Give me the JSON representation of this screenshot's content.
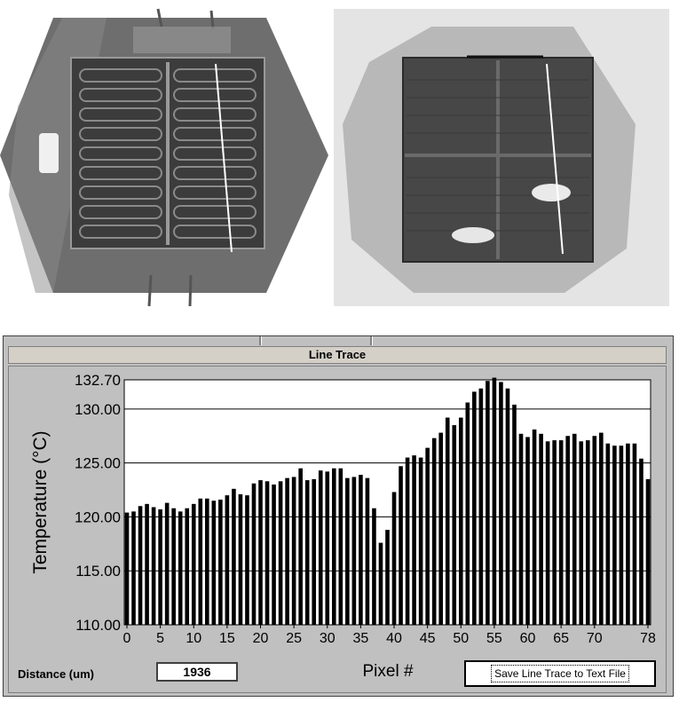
{
  "window": {
    "title": "Line Trace"
  },
  "controls": {
    "distance_label": "Distance (um)",
    "distance_value": "1936",
    "save_button_label": "Save Line Trace to Text File"
  },
  "chart_data": {
    "type": "bar",
    "ylabel": "Temperature (°C)",
    "xlabel": "Pixel #",
    "ylim": [
      110.0,
      132.7
    ],
    "xlim": [
      0,
      78
    ],
    "yticks": [
      "110.00",
      "115.00",
      "120.00",
      "125.00",
      "130.00",
      "132.70"
    ],
    "xticks": [
      "0",
      "5",
      "10",
      "15",
      "20",
      "25",
      "30",
      "35",
      "40",
      "45",
      "50",
      "55",
      "60",
      "65",
      "70",
      "78"
    ],
    "grid": "horizontal",
    "x": [
      0,
      1,
      2,
      3,
      4,
      5,
      6,
      7,
      8,
      9,
      10,
      11,
      12,
      13,
      14,
      15,
      16,
      17,
      18,
      19,
      20,
      21,
      22,
      23,
      24,
      25,
      26,
      27,
      28,
      29,
      30,
      31,
      32,
      33,
      34,
      35,
      36,
      37,
      38,
      39,
      40,
      41,
      42,
      43,
      44,
      45,
      46,
      47,
      48,
      49,
      50,
      51,
      52,
      53,
      54,
      55,
      56,
      57,
      58,
      59,
      60,
      61,
      62,
      63,
      64,
      65,
      66,
      67,
      68,
      69,
      70,
      71,
      72,
      73,
      74,
      75,
      76,
      77,
      78
    ],
    "values": [
      120.4,
      120.5,
      121.0,
      121.2,
      120.9,
      120.7,
      121.3,
      120.8,
      120.5,
      120.8,
      121.2,
      121.7,
      121.7,
      121.5,
      121.6,
      122.0,
      122.6,
      122.1,
      122.0,
      123.1,
      123.4,
      123.3,
      123.0,
      123.3,
      123.6,
      123.7,
      124.5,
      123.4,
      123.5,
      124.3,
      124.2,
      124.5,
      124.5,
      123.6,
      123.7,
      123.9,
      123.6,
      120.8,
      117.6,
      118.8,
      122.3,
      124.7,
      125.5,
      125.7,
      125.5,
      126.4,
      127.3,
      127.8,
      129.2,
      128.5,
      129.2,
      130.6,
      131.6,
      131.9,
      132.6,
      132.9,
      132.5,
      131.9,
      130.4,
      127.7,
      127.4,
      128.1,
      127.7,
      127.0,
      127.1,
      127.1,
      127.5,
      127.7,
      127.0,
      127.1,
      127.5,
      127.8,
      126.8,
      126.6,
      126.6,
      126.8,
      126.8,
      125.4,
      123.5
    ]
  }
}
